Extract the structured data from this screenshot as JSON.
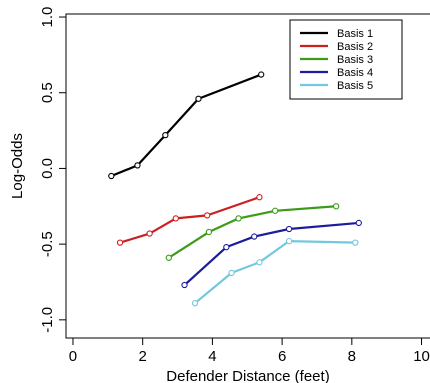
{
  "chart_data": {
    "type": "line",
    "xlabel": "Defender Distance (feet)",
    "ylabel": "Log-Odds",
    "xlim": [
      -0.2,
      10.3
    ],
    "ylim": [
      -1.12,
      1.02
    ],
    "x_ticks": [
      0,
      2,
      4,
      6,
      8,
      10
    ],
    "y_ticks": [
      1.0,
      0.5,
      0.0,
      -0.5,
      -1.0
    ],
    "x_tick_labels": [
      "0",
      "2",
      "4",
      "6",
      "8",
      "10"
    ],
    "y_tick_labels": [
      "1.0",
      "0.5",
      "0.0",
      "-0.5",
      "-1.0"
    ],
    "legend_position": "top-right",
    "grid": false,
    "series": [
      {
        "name": "Basis 1",
        "color": "#000000",
        "x": [
          1.1,
          1.85,
          2.65,
          3.6,
          5.4
        ],
        "y": [
          -0.05,
          0.02,
          0.22,
          0.46,
          0.62
        ]
      },
      {
        "name": "Basis 2",
        "color": "#cc1f1f",
        "x": [
          1.35,
          2.2,
          2.95,
          3.85,
          5.35
        ],
        "y": [
          -0.49,
          -0.43,
          -0.33,
          -0.31,
          -0.19
        ]
      },
      {
        "name": "Basis 3",
        "color": "#3c9b18",
        "x": [
          2.75,
          3.9,
          4.75,
          5.8,
          7.55
        ],
        "y": [
          -0.59,
          -0.42,
          -0.33,
          -0.28,
          -0.25
        ]
      },
      {
        "name": "Basis 4",
        "color": "#1c1c9c",
        "x": [
          3.2,
          4.4,
          5.2,
          6.2,
          8.2
        ],
        "y": [
          -0.77,
          -0.52,
          -0.45,
          -0.4,
          -0.36
        ]
      },
      {
        "name": "Basis 5",
        "color": "#72c8dc",
        "x": [
          3.5,
          4.55,
          5.35,
          6.2,
          8.1
        ],
        "y": [
          -0.89,
          -0.69,
          -0.62,
          -0.48,
          -0.49
        ]
      }
    ]
  }
}
